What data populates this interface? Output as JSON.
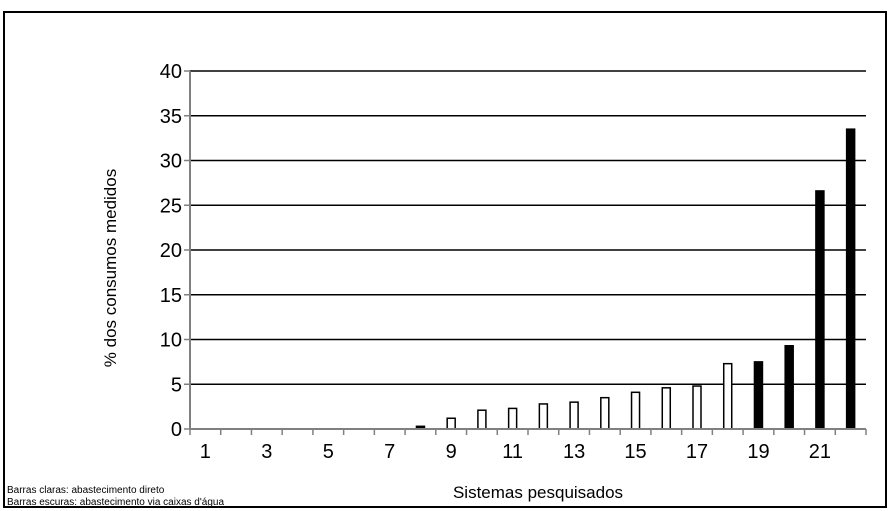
{
  "chart_data": {
    "type": "bar",
    "xlabel": "Sistemas pesquisados",
    "ylabel": "% dos consumos medidos",
    "ylim": [
      0,
      40
    ],
    "yticks": [
      0,
      5,
      10,
      15,
      20,
      25,
      30,
      35,
      40
    ],
    "xtick_labels": [
      "1",
      "3",
      "5",
      "7",
      "9",
      "11",
      "13",
      "15",
      "17",
      "19",
      "21"
    ],
    "categories": [
      "1",
      "2",
      "3",
      "4",
      "5",
      "6",
      "7",
      "8",
      "9",
      "10",
      "11",
      "12",
      "13",
      "14",
      "15",
      "16",
      "17",
      "18",
      "19",
      "20",
      "21",
      "22"
    ],
    "values": [
      0,
      0,
      0,
      0,
      0,
      0,
      0,
      0.3,
      1.2,
      2.1,
      2.3,
      2.8,
      3.0,
      3.5,
      4.1,
      4.6,
      4.8,
      7.3,
      7.5,
      9.3,
      26.6,
      33.5
    ],
    "bar_types": [
      "light",
      "light",
      "light",
      "light",
      "light",
      "light",
      "light",
      "dark",
      "light",
      "light",
      "light",
      "light",
      "light",
      "light",
      "light",
      "light",
      "light",
      "light",
      "dark",
      "dark",
      "dark",
      "dark"
    ],
    "grid": true,
    "colors": {
      "light_bar_fill": "#ffffff",
      "dark_bar_fill": "#000000",
      "bar_stroke": "#000000",
      "grid": "#000000",
      "axis": "#808080"
    }
  },
  "notes": {
    "light": "Barras claras: abastecimento direto",
    "dark": "Barras escuras: abastecimento via caixas d'água"
  }
}
